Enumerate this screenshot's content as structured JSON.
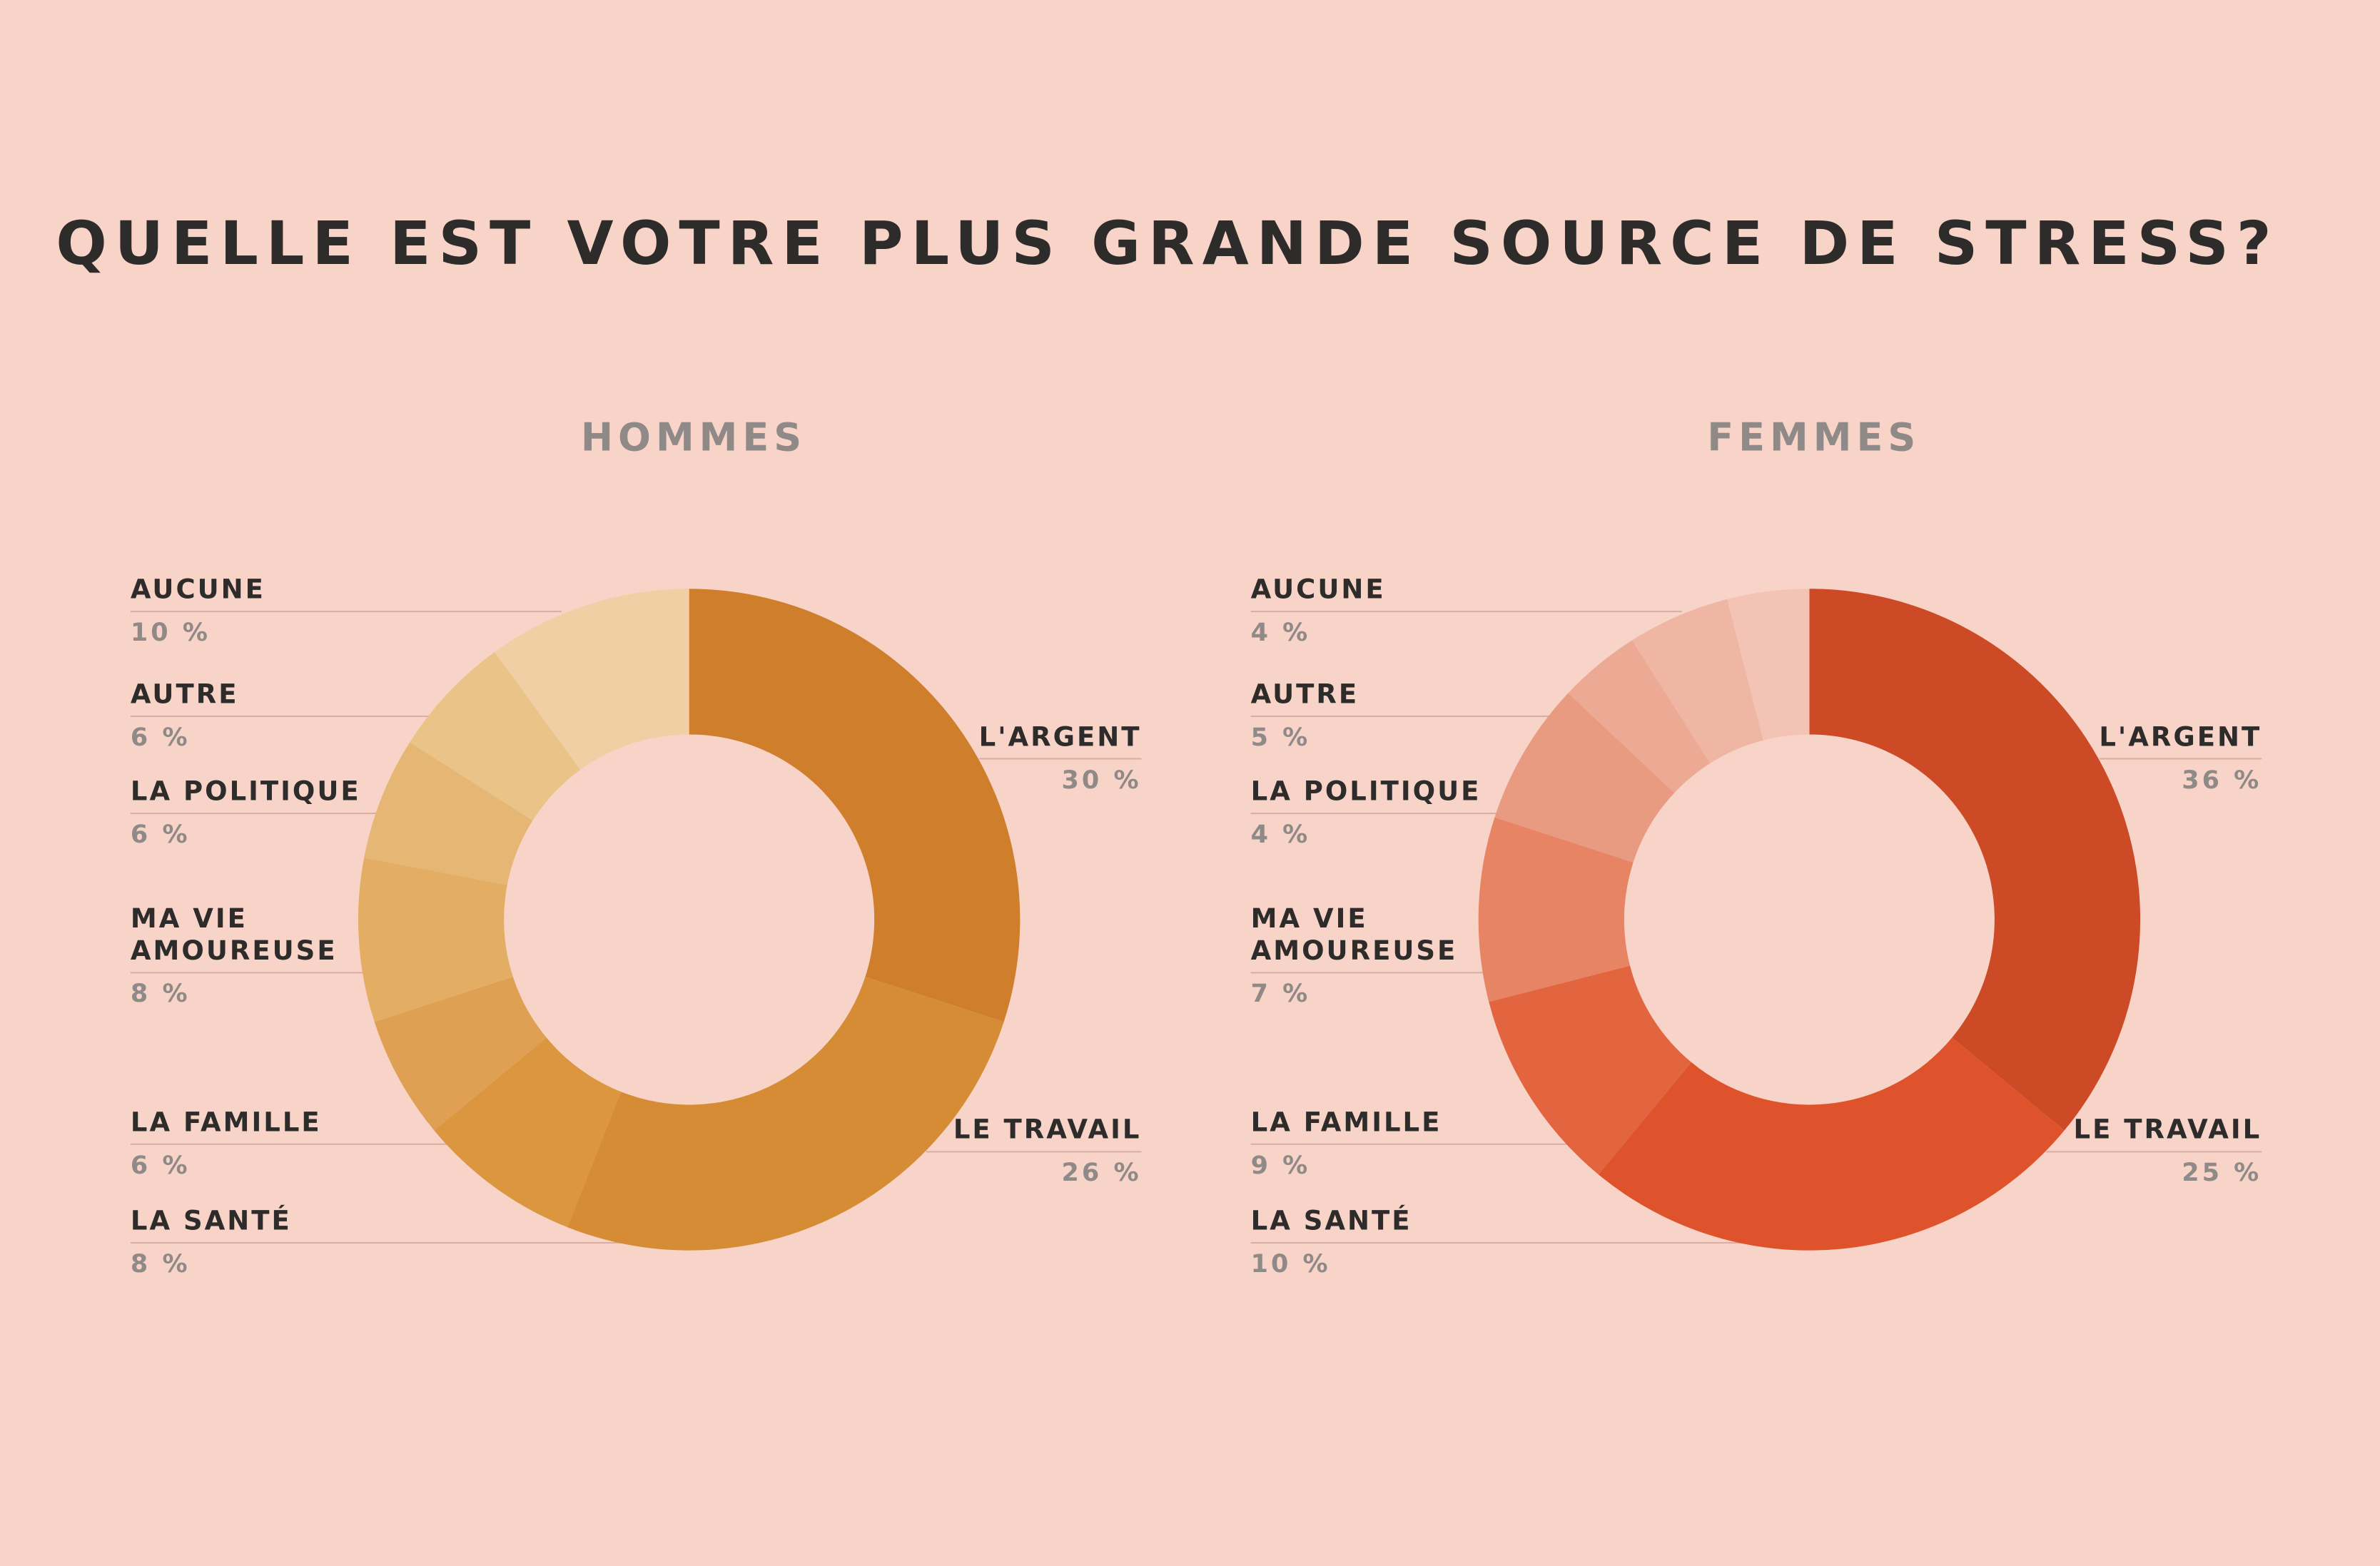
{
  "title": "QUELLE EST VOTRE PLUS GRANDE SOURCE DE STRESS?",
  "chart_data": [
    {
      "type": "donut",
      "title": "HOMMES",
      "categories": [
        "L'ARGENT",
        "LE TRAVAIL",
        "LA SANTÉ",
        "LA FAMILLE",
        "MA VIE AMOUREUSE",
        "LA POLITIQUE",
        "AUTRE",
        "AUCUNE"
      ],
      "values": [
        30,
        26,
        8,
        6,
        8,
        6,
        6,
        10
      ],
      "value_labels": [
        "30 %",
        "26 %",
        "8 %",
        "6 %",
        "8 %",
        "6 %",
        "6 %",
        "10 %"
      ],
      "colors": [
        "#cf7e2c",
        "#d58c35",
        "#db963f",
        "#dfa053",
        "#e3ae64",
        "#e6b774",
        "#eac389",
        "#f0cfa4"
      ]
    },
    {
      "type": "donut",
      "title": "FEMMES",
      "categories": [
        "L'ARGENT",
        "LE TRAVAIL",
        "LA SANTÉ",
        "LA FAMILLE",
        "MA VIE AMOUREUSE",
        "LA POLITIQUE",
        "AUTRE",
        "AUCUNE"
      ],
      "values": [
        36,
        25,
        10,
        9,
        7,
        4,
        5,
        4
      ],
      "value_labels": [
        "36 %",
        "25 %",
        "10 %",
        "9 %",
        "7 %",
        "4 %",
        "5 %",
        "4 %"
      ],
      "colors": [
        "#cc4b26",
        "#de532c",
        "#e26540",
        "#e68464",
        "#e99b82",
        "#eca993",
        "#efb6a3",
        "#f3c4b6"
      ]
    }
  ]
}
